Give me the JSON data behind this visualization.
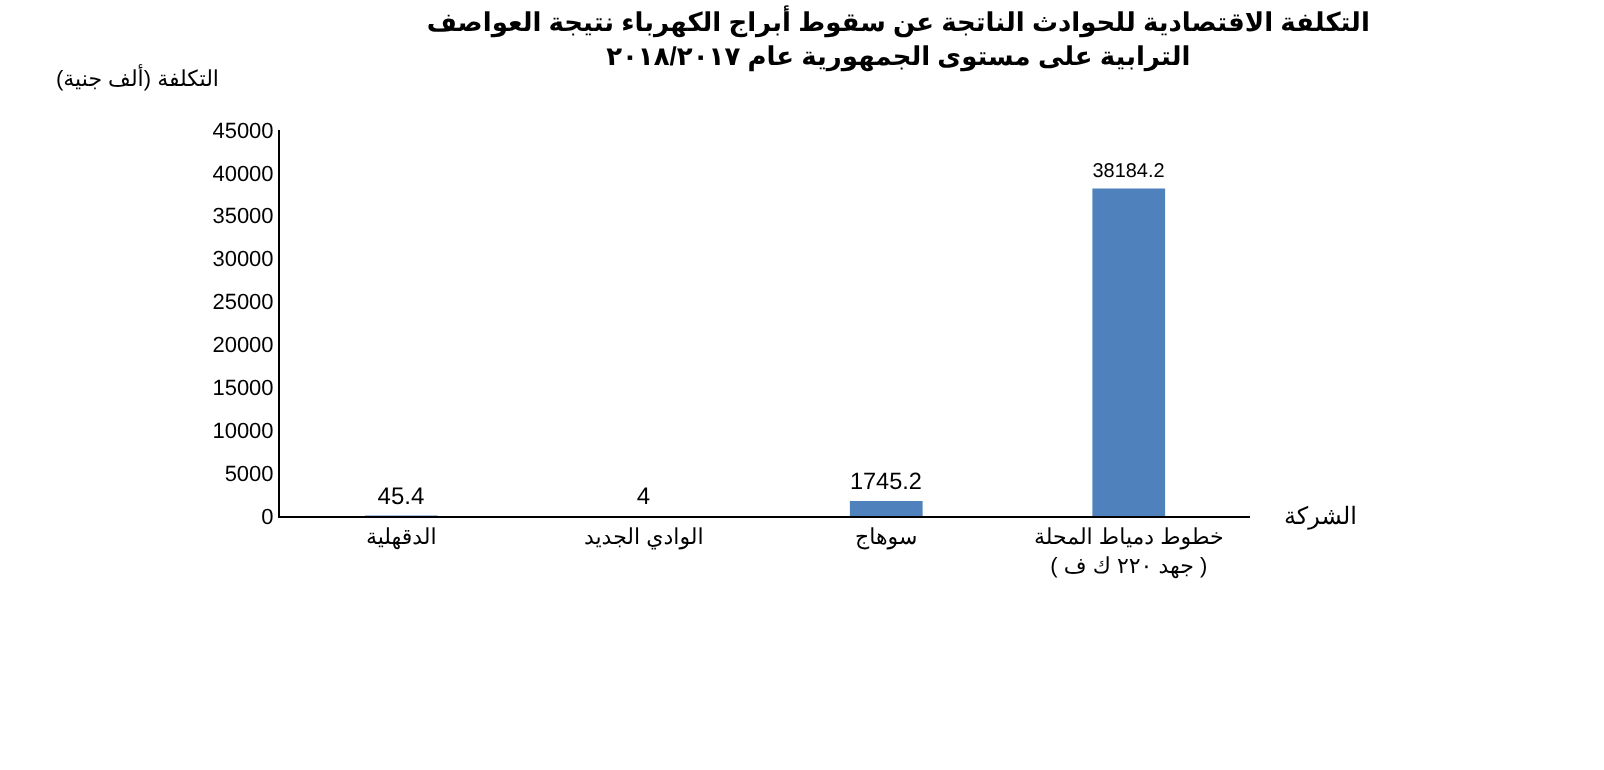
{
  "chart_data": {
    "type": "bar",
    "title": "التكلفة الاقتصادية للحوادث الناتجة عن سقوط أبراج الكهرباء نتيجة العواصف\nالترابية على مستوى الجمهورية عام ٢٠١٨/٢٠١٧",
    "ylabel": "التكلفة (ألف جنية)",
    "xlabel": "الشركة",
    "categories": [
      "الدقهلية",
      "الوادي الجديد",
      "سوهاج",
      "خطوط دمياط المحلة\n( جهد ٢٢٠ ك ف )"
    ],
    "values": [
      45.4,
      4,
      1745.2,
      38184.2
    ],
    "color": "#4f81bd",
    "data_labels": true,
    "grid": false,
    "ylim": [
      0,
      45000
    ],
    "yticks": [
      0,
      5000,
      10000,
      15000,
      20000,
      25000,
      30000,
      35000,
      40000,
      45000
    ]
  }
}
